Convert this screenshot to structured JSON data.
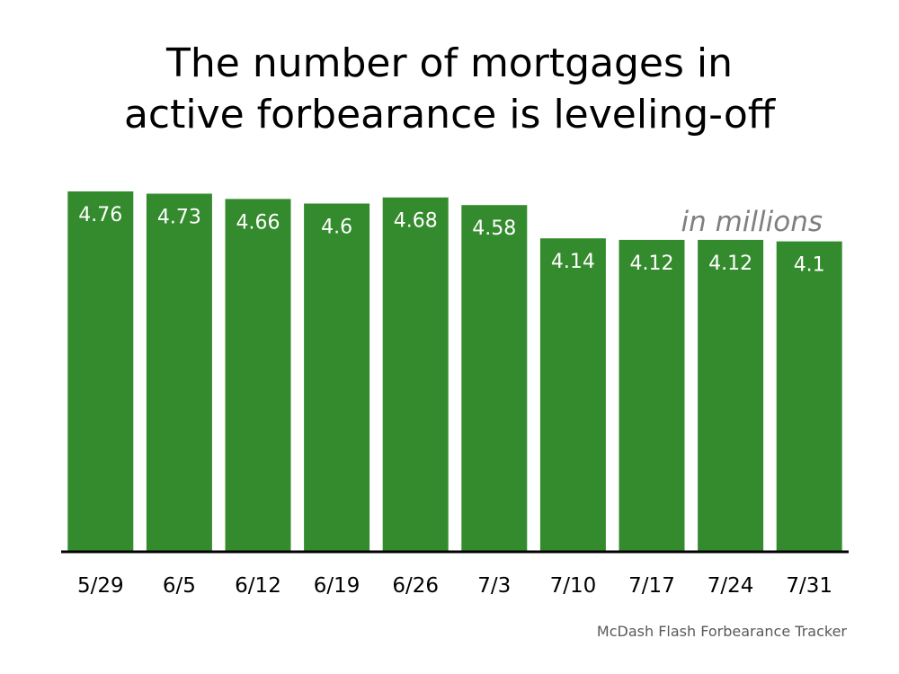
{
  "title_lines": [
    "The number of mortgages in",
    "active forbearance is leveling-off"
  ],
  "units_note": "in millions",
  "source": "McDash Flash Forbearance Tracker",
  "colors": {
    "bar": "#348b2e",
    "axis": "#000000",
    "label": "#ffffff",
    "units": "#7f7f7f"
  },
  "chart_data": {
    "type": "bar",
    "title": "The number of mortgages in active forbearance is leveling-off",
    "categories": [
      "5/29",
      "6/5",
      "6/12",
      "6/19",
      "6/26",
      "7/3",
      "7/10",
      "7/17",
      "7/24",
      "7/31"
    ],
    "values": [
      4.76,
      4.73,
      4.66,
      4.6,
      4.68,
      4.58,
      4.14,
      4.12,
      4.12,
      4.1
    ],
    "value_labels": [
      "4.76",
      "4.73",
      "4.66",
      "4.6",
      "4.68",
      "4.58",
      "4.14",
      "4.12",
      "4.12",
      "4.1"
    ],
    "xlabel": "",
    "ylabel": "",
    "units": "in millions",
    "ylim": [
      0,
      4.76
    ],
    "grid": false,
    "legend": "none"
  }
}
